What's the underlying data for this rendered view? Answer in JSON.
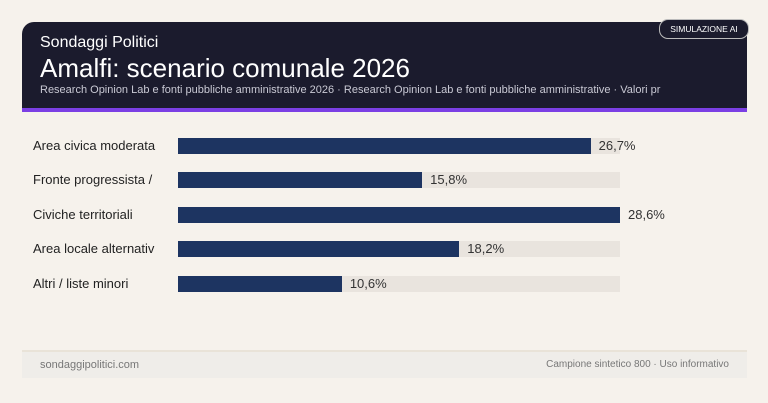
{
  "header": {
    "brand": "Sondaggi Politici",
    "title": "Amalfi: scenario comunale 2026",
    "subtitle": "Research Opinion Lab e fonti pubbliche amministrative 2026 · Research Opinion Lab e fonti pubbliche amministrative · Valori pr",
    "badge": "SIMULAZIONE AI"
  },
  "colors": {
    "bar": "#1d3461",
    "track": "#e9e4de",
    "accent": "#7b3fe4",
    "header_bg": "#1b1b2d"
  },
  "chart_data": {
    "type": "bar",
    "orientation": "horizontal",
    "categories": [
      "Area civica moderata",
      "Fronte progressista /",
      "Civiche territoriali",
      "Area locale alternativ",
      "Altri / liste minori"
    ],
    "values": [
      26.7,
      15.8,
      28.6,
      18.2,
      10.6
    ],
    "value_labels": [
      "26,7%",
      "15,8%",
      "28,6%",
      "18,2%",
      "10,6%"
    ],
    "xlim": [
      0,
      28.6
    ]
  },
  "footer": {
    "left": "sondaggipolitici.com",
    "right": "Campione sintetico 800 · Uso informativo"
  }
}
